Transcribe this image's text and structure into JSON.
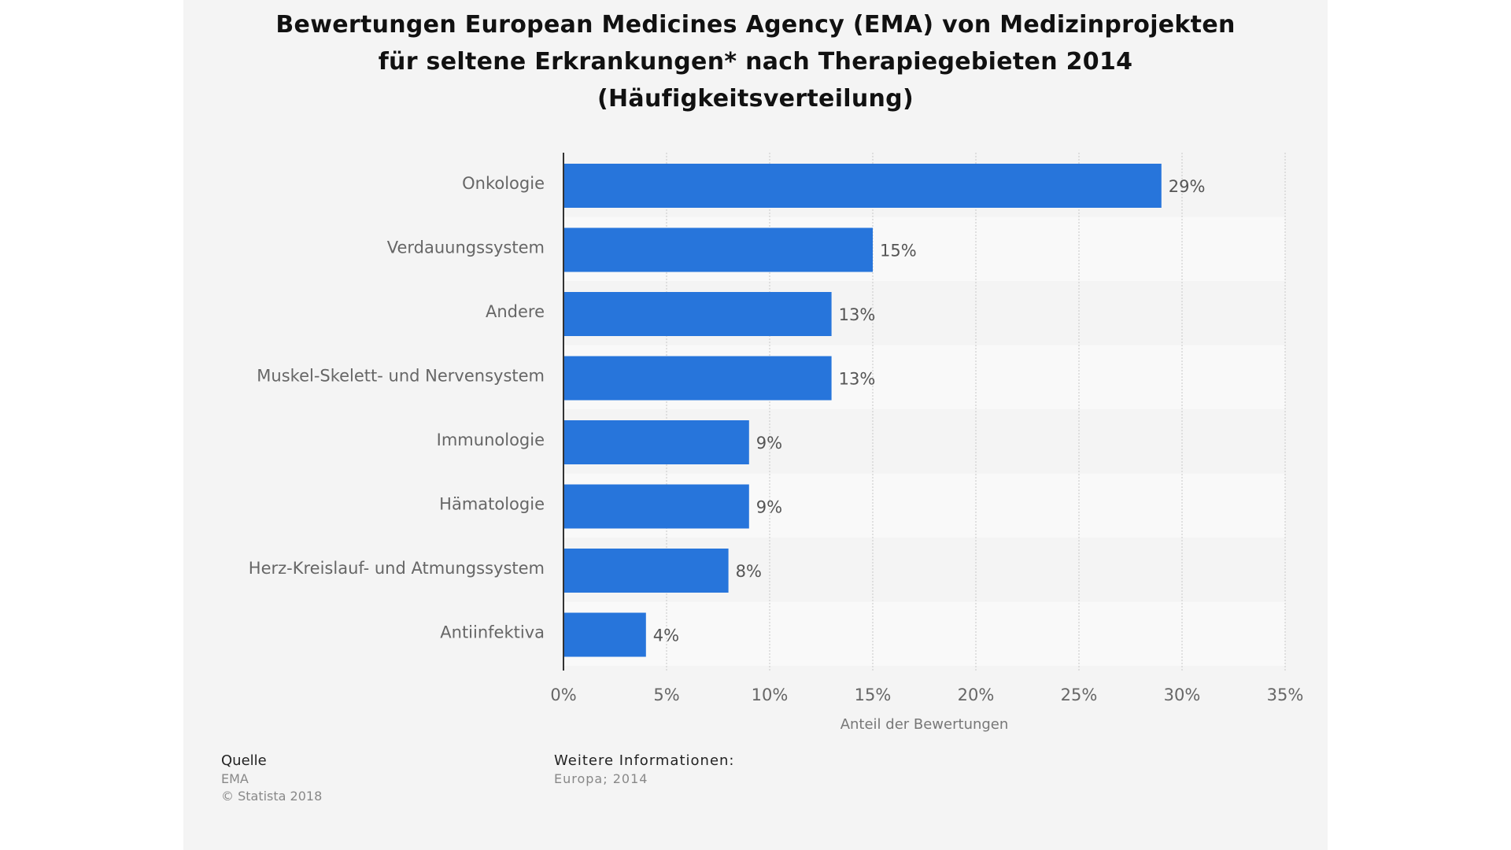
{
  "title_lines": [
    "Bewertungen European Medicines Agency (EMA) von Medizinprojekten",
    "für seltene Erkrankungen* nach Therapiegebieten 2014",
    "(Häufigkeitsverteilung)"
  ],
  "colors": {
    "bar": "#2775db",
    "band_light": "#f9f9f9",
    "band_dark": "#f4f4f4",
    "axis": "#333333",
    "grid": "#c8c8c8"
  },
  "chart_data": {
    "type": "bar",
    "orientation": "horizontal",
    "title": "Bewertungen European Medicines Agency (EMA) von Medizinprojekten für seltene Erkrankungen* nach Therapiegebieten 2014 (Häufigkeitsverteilung)",
    "categories": [
      "Onkologie",
      "Verdauungssystem",
      "Andere",
      "Muskel-Skelett- und Nervensystem",
      "Immunologie",
      "Hämatologie",
      "Herz-Kreislauf- und Atmungssystem",
      "Antiinfektiva"
    ],
    "values": [
      29,
      15,
      13,
      13,
      9,
      9,
      8,
      4
    ],
    "value_labels": [
      "29%",
      "15%",
      "13%",
      "13%",
      "9%",
      "9%",
      "8%",
      "4%"
    ],
    "xlabel": "Anteil der Bewertungen",
    "ylabel": "",
    "xlim": [
      0,
      35
    ],
    "xticks": [
      0,
      5,
      10,
      15,
      20,
      25,
      30,
      35
    ],
    "xtick_labels": [
      "0%",
      "5%",
      "10%",
      "15%",
      "20%",
      "25%",
      "30%",
      "35%"
    ],
    "grid": true,
    "legend": "none"
  },
  "footer": {
    "source_heading": "Quelle",
    "source_lines": [
      "EMA",
      "© Statista 2018"
    ],
    "info_heading": "Weitere Informationen:",
    "info_lines": [
      "Europa; 2014"
    ]
  }
}
